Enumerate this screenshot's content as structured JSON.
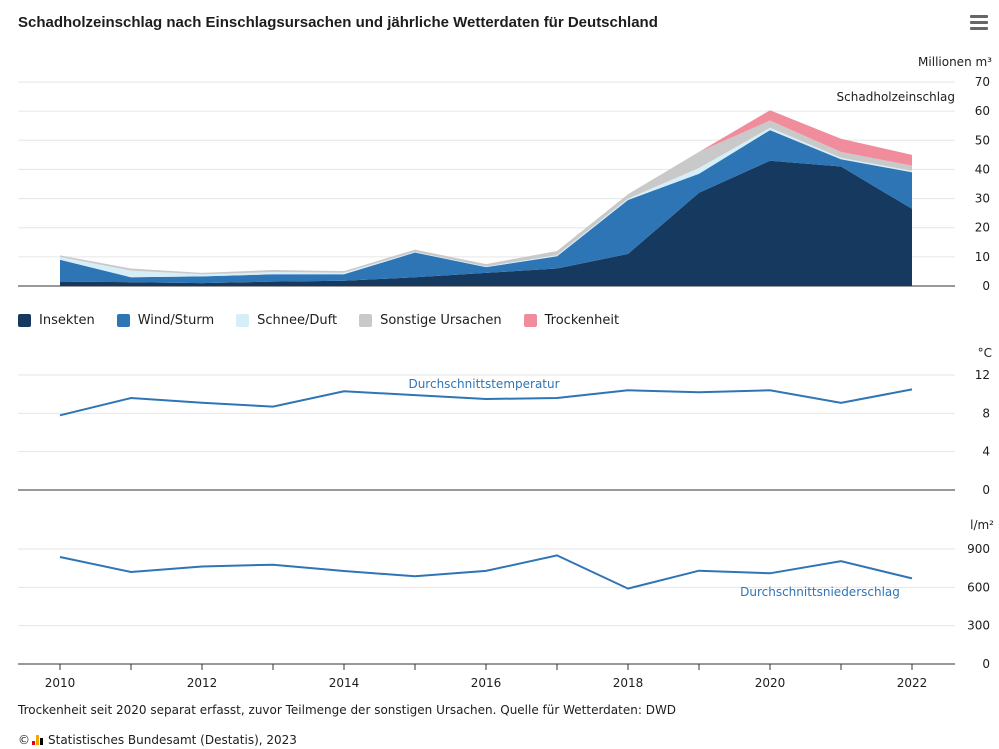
{
  "title": "Schadholzeinschlag nach Einschlagsursachen und jährliche Wetterdaten für Deutschland",
  "menu_icon": "hamburger-menu-icon",
  "footnote": "Trockenheit seit 2020 separat erfasst, zuvor Teilmenge der sonstigen Ursachen. Quelle für Wetterdaten: DWD",
  "credit": {
    "copyright": "©",
    "text": "Statistisches Bundesamt (Destatis), 2023",
    "logo_colors": [
      "#e2001a",
      "#f7a600",
      "#000000"
    ]
  },
  "chart_data": [
    {
      "type": "area",
      "stacked": true,
      "title": "Schadholzeinschlag",
      "unit_label": "Millionen m³",
      "x": [
        2010,
        2011,
        2012,
        2013,
        2014,
        2015,
        2016,
        2017,
        2018,
        2019,
        2020,
        2021,
        2022
      ],
      "ylim": [
        0,
        70
      ],
      "yticks": [
        0,
        10,
        20,
        30,
        40,
        50,
        60,
        70
      ],
      "grid": true,
      "legend_position": "bottom-left",
      "series": [
        {
          "name": "Insekten",
          "color": "#163a5f",
          "values": [
            1.5,
            1.3,
            1.0,
            1.5,
            1.8,
            3.0,
            4.5,
            6.0,
            11.0,
            32.0,
            43.0,
            41.0,
            26.5
          ]
        },
        {
          "name": "Wind/Sturm",
          "color": "#2e75b6",
          "values": [
            7.5,
            1.7,
            2.3,
            2.5,
            2.2,
            8.5,
            2.0,
            4.2,
            18.5,
            6.5,
            10.5,
            2.5,
            12.5
          ]
        },
        {
          "name": "Schnee/Duft",
          "color": "#d6eef8",
          "values": [
            1.0,
            2.3,
            0.7,
            0.8,
            0.6,
            0.2,
            0.2,
            0.4,
            0.5,
            2.0,
            0.8,
            0.5,
            0.5
          ]
        },
        {
          "name": "Sonstige Ursachen",
          "color": "#c9c9c9",
          "values": [
            0.5,
            0.7,
            0.5,
            0.7,
            0.5,
            0.8,
            0.8,
            1.4,
            1.5,
            5.5,
            2.5,
            2.0,
            1.8
          ]
        },
        {
          "name": "Trockenheit",
          "color": "#f08c9b",
          "values": [
            0,
            0,
            0,
            0,
            0,
            0,
            0,
            0,
            0,
            0,
            3.5,
            4.5,
            3.7
          ]
        }
      ]
    },
    {
      "type": "line",
      "unit_label": "°C",
      "series_label": "Durchschnittstemperatur",
      "color": "#2e75b6",
      "x": [
        2010,
        2011,
        2012,
        2013,
        2014,
        2015,
        2016,
        2017,
        2018,
        2019,
        2020,
        2021,
        2022
      ],
      "values": [
        7.8,
        9.6,
        9.1,
        8.7,
        10.3,
        9.9,
        9.5,
        9.6,
        10.4,
        10.2,
        10.4,
        9.1,
        10.5
      ],
      "ylim": [
        0,
        12
      ],
      "yticks": [
        0,
        4,
        8,
        12
      ],
      "grid": true
    },
    {
      "type": "line",
      "unit_label": "l/m²",
      "series_label": "Durchschnittsniederschlag",
      "color": "#2e75b6",
      "x": [
        2010,
        2011,
        2012,
        2013,
        2014,
        2015,
        2016,
        2017,
        2018,
        2019,
        2020,
        2021,
        2022
      ],
      "values": [
        837,
        720,
        763,
        777,
        728,
        686,
        729,
        850,
        590,
        730,
        710,
        805,
        670
      ],
      "ylim": [
        0,
        900
      ],
      "yticks": [
        0,
        300,
        600,
        900
      ],
      "grid": true,
      "xticks": [
        2010,
        2012,
        2014,
        2016,
        2018,
        2020,
        2022
      ]
    }
  ]
}
